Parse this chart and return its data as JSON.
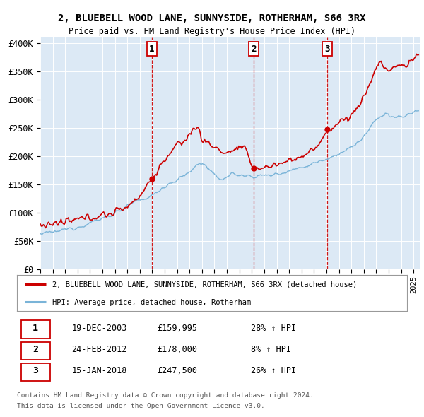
{
  "title1": "2, BLUEBELL WOOD LANE, SUNNYSIDE, ROTHERHAM, S66 3RX",
  "title2": "Price paid vs. HM Land Registry's House Price Index (HPI)",
  "ylabel_ticks": [
    "£0",
    "£50K",
    "£100K",
    "£150K",
    "£200K",
    "£250K",
    "£300K",
    "£350K",
    "£400K"
  ],
  "ytick_values": [
    0,
    50000,
    100000,
    150000,
    200000,
    250000,
    300000,
    350000,
    400000
  ],
  "ylim": [
    0,
    410000
  ],
  "plot_bg_color": "#dce9f5",
  "grid_color": "#ffffff",
  "red_line_color": "#cc0000",
  "blue_line_color": "#7ab4d8",
  "dashed_line_color": "#cc0000",
  "purchase_dates": [
    2003.97,
    2012.15,
    2018.04
  ],
  "purchase_prices": [
    159995,
    178000,
    247500
  ],
  "purchase_labels": [
    "1",
    "2",
    "3"
  ],
  "legend_line1": "2, BLUEBELL WOOD LANE, SUNNYSIDE, ROTHERHAM, S66 3RX (detached house)",
  "legend_line2": "HPI: Average price, detached house, Rotherham",
  "table_rows": [
    [
      "1",
      "19-DEC-2003",
      "£159,995",
      "28% ↑ HPI"
    ],
    [
      "2",
      "24-FEB-2012",
      "£178,000",
      "8% ↑ HPI"
    ],
    [
      "3",
      "15-JAN-2018",
      "£247,500",
      "26% ↑ HPI"
    ]
  ],
  "footnote1": "Contains HM Land Registry data © Crown copyright and database right 2024.",
  "footnote2": "This data is licensed under the Open Government Licence v3.0.",
  "xmin": 1995.0,
  "xmax": 2025.5
}
